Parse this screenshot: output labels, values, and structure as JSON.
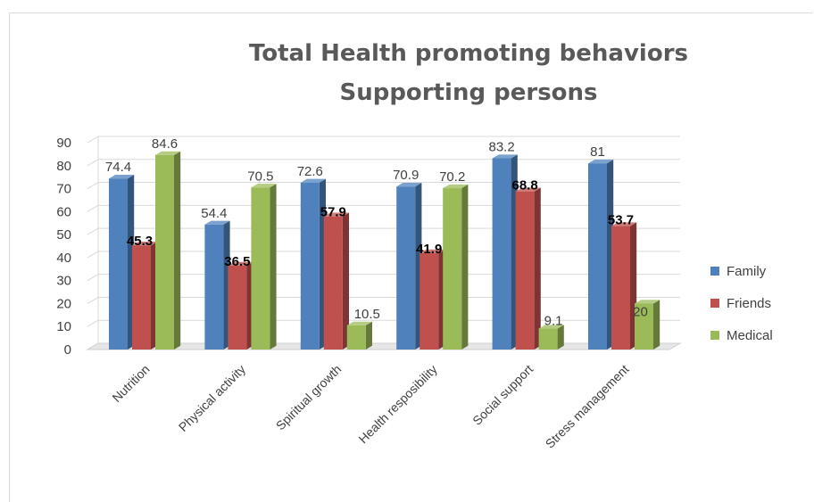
{
  "chart_data": {
    "type": "bar",
    "title": "Total Health promoting behaviors",
    "subtitle": "Supporting persons",
    "categories": [
      "Nutrition",
      "Physical activity",
      "Spiritual growth",
      "Health resposibility",
      "Social support",
      "Stress management"
    ],
    "series": [
      {
        "name": "Family",
        "color": "#4f81bd",
        "values": [
          74.4,
          54.4,
          72.6,
          70.9,
          83.2,
          81
        ],
        "labels": [
          "74.4",
          "54.4",
          "72.6",
          "70.9",
          "83.2",
          "81"
        ]
      },
      {
        "name": "Friends",
        "color": "#c0504d",
        "values": [
          45.3,
          36.5,
          57.9,
          41.9,
          68.8,
          53.7
        ],
        "labels": [
          "45.3",
          "36.5",
          "57.9",
          "41.9",
          "68.8",
          "53.7"
        ]
      },
      {
        "name": "Medical",
        "color": "#9bbb59",
        "values": [
          84.6,
          70.5,
          10.5,
          70.2,
          9.1,
          20
        ],
        "labels": [
          "84.6",
          "70.5",
          "10.5",
          "70.2",
          "9.1",
          "20"
        ]
      }
    ],
    "ylim": [
      0,
      90
    ],
    "yticks": [
      0,
      10,
      20,
      30,
      40,
      50,
      60,
      70,
      80,
      90
    ],
    "xlabel": "",
    "ylabel": "",
    "grid": true,
    "legend": "right",
    "style": "3d-clustered-column"
  }
}
